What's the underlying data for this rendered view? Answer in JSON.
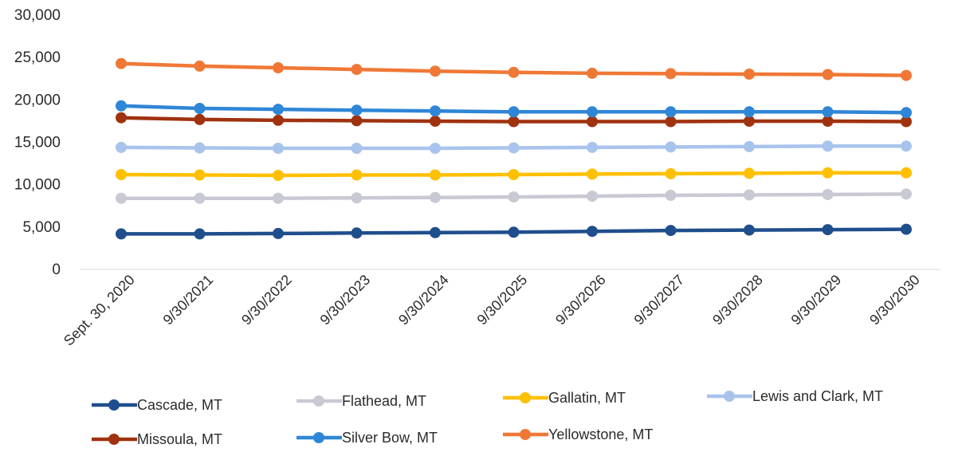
{
  "chart_data": {
    "type": "line",
    "title": "",
    "xlabel": "",
    "ylabel": "",
    "categories": [
      "Sept. 30, 2020",
      "9/30/2021",
      "9/30/2022",
      "9/30/2023",
      "9/30/2024",
      "9/30/2025",
      "9/30/2026",
      "9/30/2027",
      "9/30/2028",
      "9/30/2029",
      "9/30/2030"
    ],
    "ylim": [
      0,
      30000
    ],
    "yticks": [
      0,
      5000,
      10000,
      15000,
      20000,
      25000,
      30000
    ],
    "ytick_labels": [
      "0",
      "5,000",
      "10,000",
      "15,000",
      "20,000",
      "25,000",
      "30,000"
    ],
    "grid": false,
    "legend_position": "bottom",
    "series": [
      {
        "name": "Cascade, MT",
        "color": "#1f4e8c",
        "values": [
          4100,
          4100,
          4150,
          4200,
          4250,
          4300,
          4400,
          4500,
          4550,
          4600,
          4650
        ]
      },
      {
        "name": "Flathead, MT",
        "color": "#c9c9d4",
        "values": [
          8300,
          8300,
          8300,
          8350,
          8400,
          8450,
          8550,
          8650,
          8700,
          8750,
          8800
        ]
      },
      {
        "name": "Gallatin, MT",
        "color": "#ffc000",
        "values": [
          11100,
          11050,
          11000,
          11050,
          11050,
          11100,
          11150,
          11200,
          11250,
          11300,
          11300
        ]
      },
      {
        "name": "Lewis and Clark, MT",
        "color": "#a9c4ec",
        "values": [
          14300,
          14250,
          14200,
          14200,
          14200,
          14250,
          14300,
          14350,
          14400,
          14450,
          14450
        ]
      },
      {
        "name": "Missoula, MT",
        "color": "#a0320f",
        "values": [
          17800,
          17600,
          17500,
          17450,
          17400,
          17350,
          17350,
          17350,
          17400,
          17400,
          17350
        ]
      },
      {
        "name": "Silver Bow, MT",
        "color": "#2f86d6",
        "values": [
          19200,
          18900,
          18800,
          18700,
          18600,
          18500,
          18500,
          18500,
          18500,
          18500,
          18400
        ]
      },
      {
        "name": "Yellowstone, MT",
        "color": "#f07836",
        "values": [
          24200,
          23900,
          23700,
          23500,
          23300,
          23150,
          23050,
          23000,
          22950,
          22900,
          22800
        ]
      }
    ]
  }
}
